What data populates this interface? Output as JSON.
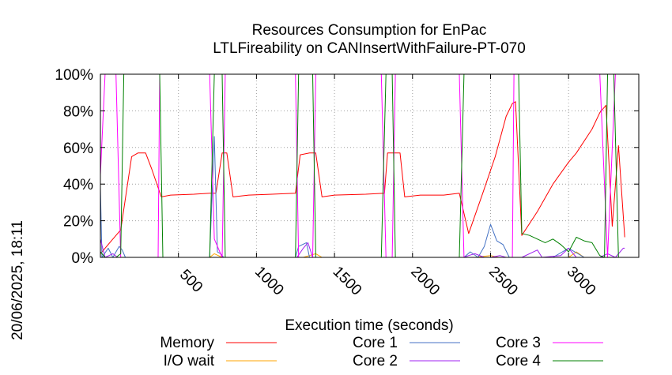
{
  "chart_data": {
    "type": "line",
    "title": "Resources Consumption for EnPac",
    "subtitle": "LTLFireability on CANInsertWithFailure-PT-070",
    "xlabel": "Execution time (seconds)",
    "ylabel": "",
    "side_label": "20/06/2025, 18:11",
    "xlim": [
      0,
      3450
    ],
    "ylim": [
      0,
      100
    ],
    "x_ticks": [
      500,
      1000,
      1500,
      2000,
      2500,
      3000
    ],
    "y_ticks": [
      0,
      20,
      40,
      60,
      80,
      100
    ],
    "y_tick_suffix": "%",
    "grid": true,
    "legend_position": "bottom",
    "series": [
      {
        "name": "Memory",
        "color": "#ff0000",
        "points": [
          [
            0,
            2
          ],
          [
            30,
            5
          ],
          [
            60,
            8
          ],
          [
            100,
            12
          ],
          [
            130,
            15
          ],
          [
            200,
            55
          ],
          [
            240,
            57
          ],
          [
            290,
            57
          ],
          [
            330,
            48
          ],
          [
            390,
            33
          ],
          [
            450,
            34
          ],
          [
            600,
            34.5
          ],
          [
            700,
            35
          ],
          [
            740,
            35
          ],
          [
            780,
            57
          ],
          [
            810,
            57
          ],
          [
            850,
            33
          ],
          [
            950,
            34
          ],
          [
            1100,
            34.5
          ],
          [
            1250,
            35
          ],
          [
            1280,
            56
          ],
          [
            1340,
            57
          ],
          [
            1380,
            57
          ],
          [
            1420,
            33
          ],
          [
            1500,
            34
          ],
          [
            1700,
            34.5
          ],
          [
            1820,
            35
          ],
          [
            1840,
            57
          ],
          [
            1890,
            57
          ],
          [
            1920,
            57
          ],
          [
            1950,
            33
          ],
          [
            2050,
            34
          ],
          [
            2200,
            34
          ],
          [
            2300,
            35
          ],
          [
            2360,
            13
          ],
          [
            2450,
            35
          ],
          [
            2530,
            55
          ],
          [
            2600,
            77
          ],
          [
            2640,
            84
          ],
          [
            2660,
            85
          ],
          [
            2700,
            12
          ],
          [
            2800,
            25
          ],
          [
            2900,
            40
          ],
          [
            3000,
            52
          ],
          [
            3050,
            57
          ],
          [
            3150,
            70
          ],
          [
            3200,
            79
          ],
          [
            3240,
            83
          ],
          [
            3280,
            17
          ],
          [
            3320,
            61
          ],
          [
            3360,
            11
          ]
        ]
      },
      {
        "name": "I/O wait",
        "color": "#ffa500",
        "points": [
          [
            0,
            0
          ],
          [
            700,
            0
          ],
          [
            730,
            2
          ],
          [
            780,
            0
          ],
          [
            1300,
            0
          ],
          [
            1340,
            1
          ],
          [
            1380,
            2
          ],
          [
            1420,
            0
          ],
          [
            2400,
            0
          ],
          [
            2500,
            1
          ],
          [
            2550,
            0
          ],
          [
            2700,
            0
          ],
          [
            3000,
            0
          ],
          [
            3050,
            3
          ],
          [
            3100,
            0
          ],
          [
            3360,
            0
          ]
        ]
      },
      {
        "name": "Core 1",
        "color": "#4472c4",
        "points": [
          [
            0,
            38
          ],
          [
            10,
            0
          ],
          [
            50,
            5
          ],
          [
            80,
            0
          ],
          [
            120,
            6
          ],
          [
            140,
            4
          ],
          [
            160,
            0
          ],
          [
            180,
            0
          ],
          [
            200,
            0
          ],
          [
            220,
            0
          ],
          [
            380,
            0
          ],
          [
            420,
            0
          ],
          [
            700,
            0
          ],
          [
            730,
            66
          ],
          [
            750,
            3
          ],
          [
            770,
            2
          ],
          [
            790,
            0
          ],
          [
            800,
            0
          ],
          [
            810,
            0
          ],
          [
            1200,
            0
          ],
          [
            1250,
            0
          ],
          [
            1270,
            6
          ],
          [
            1320,
            8
          ],
          [
            1340,
            0
          ],
          [
            1360,
            0
          ],
          [
            1780,
            0
          ],
          [
            1820,
            0
          ],
          [
            1860,
            0
          ],
          [
            2330,
            0
          ],
          [
            2370,
            3
          ],
          [
            2420,
            0
          ],
          [
            2460,
            6
          ],
          [
            2500,
            18
          ],
          [
            2540,
            9
          ],
          [
            2580,
            7
          ],
          [
            2620,
            0
          ],
          [
            2660,
            0
          ],
          [
            2700,
            0
          ],
          [
            2900,
            0
          ],
          [
            3000,
            5
          ],
          [
            3100,
            0
          ],
          [
            3300,
            0
          ],
          [
            3340,
            0
          ],
          [
            3360,
            0
          ]
        ]
      },
      {
        "name": "Core 2",
        "color": "#a020f0",
        "points": [
          [
            0,
            10
          ],
          [
            30,
            0
          ],
          [
            80,
            2
          ],
          [
            110,
            0
          ],
          [
            200,
            0
          ],
          [
            380,
            0
          ],
          [
            700,
            0
          ],
          [
            730,
            0
          ],
          [
            780,
            0
          ],
          [
            1260,
            0
          ],
          [
            1300,
            5
          ],
          [
            1330,
            8
          ],
          [
            1360,
            0
          ],
          [
            1800,
            0
          ],
          [
            2330,
            0
          ],
          [
            2360,
            1
          ],
          [
            2400,
            2
          ],
          [
            2460,
            0
          ],
          [
            2500,
            0
          ],
          [
            2560,
            1
          ],
          [
            2600,
            0
          ],
          [
            2700,
            0
          ],
          [
            2800,
            4
          ],
          [
            2830,
            0
          ],
          [
            2950,
            1
          ],
          [
            3000,
            5
          ],
          [
            3050,
            0
          ],
          [
            3200,
            0
          ],
          [
            3250,
            2
          ],
          [
            3300,
            0
          ],
          [
            3350,
            5
          ],
          [
            3360,
            5
          ]
        ]
      },
      {
        "name": "Core 3",
        "color": "#ff00ff",
        "points": [
          [
            0,
            45
          ],
          [
            30,
            100
          ],
          [
            100,
            100
          ],
          [
            130,
            0
          ],
          [
            200,
            0
          ],
          [
            300,
            0
          ],
          [
            370,
            0
          ],
          [
            380,
            100
          ],
          [
            420,
            100
          ],
          [
            700,
            100
          ],
          [
            730,
            10
          ],
          [
            780,
            0
          ],
          [
            800,
            100
          ],
          [
            1200,
            100
          ],
          [
            1250,
            100
          ],
          [
            1270,
            0
          ],
          [
            1360,
            0
          ],
          [
            1380,
            100
          ],
          [
            1800,
            100
          ],
          [
            1830,
            0
          ],
          [
            1870,
            0
          ],
          [
            1890,
            100
          ],
          [
            2300,
            100
          ],
          [
            2330,
            0
          ],
          [
            2640,
            0
          ],
          [
            2650,
            100
          ],
          [
            2700,
            100
          ],
          [
            3200,
            100
          ],
          [
            3250,
            0
          ],
          [
            3300,
            100
          ],
          [
            3360,
            100
          ]
        ]
      },
      {
        "name": "Core 4",
        "color": "#008000",
        "points": [
          [
            0,
            3
          ],
          [
            30,
            0
          ],
          [
            100,
            0
          ],
          [
            130,
            2
          ],
          [
            150,
            100
          ],
          [
            380,
            100
          ],
          [
            400,
            0
          ],
          [
            700,
            0
          ],
          [
            730,
            100
          ],
          [
            780,
            100
          ],
          [
            800,
            0
          ],
          [
            1200,
            0
          ],
          [
            1250,
            0
          ],
          [
            1270,
            100
          ],
          [
            1360,
            100
          ],
          [
            1380,
            0
          ],
          [
            1800,
            0
          ],
          [
            1830,
            100
          ],
          [
            1870,
            100
          ],
          [
            1890,
            0
          ],
          [
            2300,
            0
          ],
          [
            2330,
            100
          ],
          [
            2640,
            100
          ],
          [
            2680,
            100
          ],
          [
            2700,
            13
          ],
          [
            2750,
            12
          ],
          [
            2800,
            10
          ],
          [
            2850,
            8
          ],
          [
            2900,
            10
          ],
          [
            2950,
            7
          ],
          [
            3000,
            3
          ],
          [
            3050,
            11
          ],
          [
            3100,
            9
          ],
          [
            3150,
            8
          ],
          [
            3200,
            1
          ],
          [
            3230,
            0
          ],
          [
            3250,
            100
          ],
          [
            3290,
            100
          ],
          [
            3320,
            0
          ],
          [
            3360,
            0
          ]
        ]
      }
    ]
  }
}
